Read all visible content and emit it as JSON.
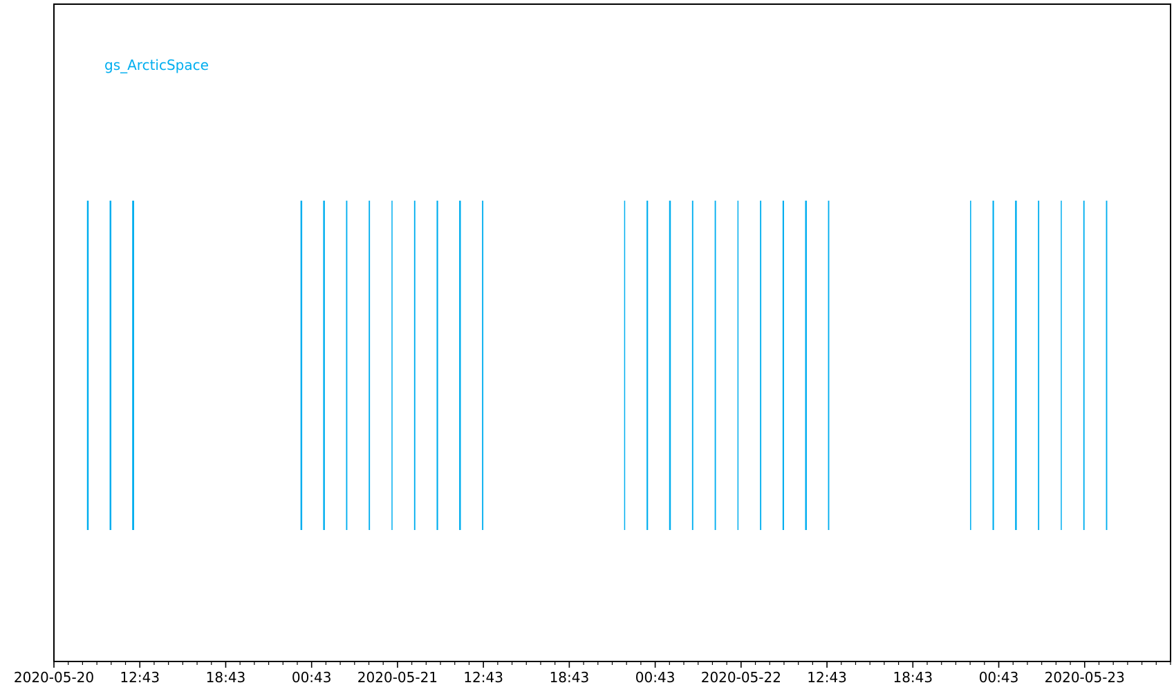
{
  "chart_data": {
    "type": "timeline",
    "series": [
      {
        "name": "gs_ArcticSpace",
        "color": "#00aeef",
        "events": [
          {
            "time": "2020-05-20 09:05",
            "duration_min": 8
          },
          {
            "time": "2020-05-20 10:40",
            "duration_min": 8
          },
          {
            "time": "2020-05-20 12:15",
            "duration_min": 9
          },
          {
            "time": "2020-05-21 00:00",
            "duration_min": 8
          },
          {
            "time": "2020-05-21 01:35",
            "duration_min": 8
          },
          {
            "time": "2020-05-21 03:10",
            "duration_min": 6
          },
          {
            "time": "2020-05-21 04:45",
            "duration_min": 6
          },
          {
            "time": "2020-05-21 06:20",
            "duration_min": 3
          },
          {
            "time": "2020-05-21 07:55",
            "duration_min": 6
          },
          {
            "time": "2020-05-21 09:30",
            "duration_min": 7
          },
          {
            "time": "2020-05-21 11:05",
            "duration_min": 8
          },
          {
            "time": "2020-05-21 12:40",
            "duration_min": 6
          },
          {
            "time": "2020-05-21 22:35",
            "duration_min": 3
          },
          {
            "time": "2020-05-22 00:10",
            "duration_min": 7
          },
          {
            "time": "2020-05-22 01:45",
            "duration_min": 8
          },
          {
            "time": "2020-05-22 03:20",
            "duration_min": 6
          },
          {
            "time": "2020-05-22 04:55",
            "duration_min": 6
          },
          {
            "time": "2020-05-22 06:30",
            "duration_min": 3
          },
          {
            "time": "2020-05-22 08:05",
            "duration_min": 6
          },
          {
            "time": "2020-05-22 09:40",
            "duration_min": 7
          },
          {
            "time": "2020-05-22 11:15",
            "duration_min": 8
          },
          {
            "time": "2020-05-22 12:50",
            "duration_min": 6
          },
          {
            "time": "2020-05-22 22:45",
            "duration_min": 5
          },
          {
            "time": "2020-05-23 00:20",
            "duration_min": 7
          },
          {
            "time": "2020-05-23 01:55",
            "duration_min": 8
          },
          {
            "time": "2020-05-23 03:30",
            "duration_min": 6
          },
          {
            "time": "2020-05-23 05:05",
            "duration_min": 3
          },
          {
            "time": "2020-05-23 06:40",
            "duration_min": 6
          },
          {
            "time": "2020-05-23 08:15",
            "duration_min": 6
          }
        ]
      }
    ],
    "xlim": [
      "2020-05-20 06:43",
      "2020-05-23 12:43"
    ],
    "xticks": [
      {
        "time": "2020-05-20 06:43",
        "label": "2020-05-20"
      },
      {
        "time": "2020-05-20 12:43",
        "label": "12:43"
      },
      {
        "time": "2020-05-20 18:43",
        "label": "18:43"
      },
      {
        "time": "2020-05-21 00:43",
        "label": "00:43"
      },
      {
        "time": "2020-05-21 06:43",
        "label": "2020-05-21"
      },
      {
        "time": "2020-05-21 12:43",
        "label": "12:43"
      },
      {
        "time": "2020-05-21 18:43",
        "label": "18:43"
      },
      {
        "time": "2020-05-22 00:43",
        "label": "00:43"
      },
      {
        "time": "2020-05-22 06:43",
        "label": "2020-05-22"
      },
      {
        "time": "2020-05-22 12:43",
        "label": "12:43"
      },
      {
        "time": "2020-05-22 18:43",
        "label": "18:43"
      },
      {
        "time": "2020-05-23 00:43",
        "label": "00:43"
      },
      {
        "time": "2020-05-23 06:43",
        "label": "2020-05-23"
      }
    ],
    "minor_tick_interval_min": 60,
    "xlabel": "",
    "ylabel": "",
    "title": "",
    "grid": false,
    "yticks": "none"
  }
}
